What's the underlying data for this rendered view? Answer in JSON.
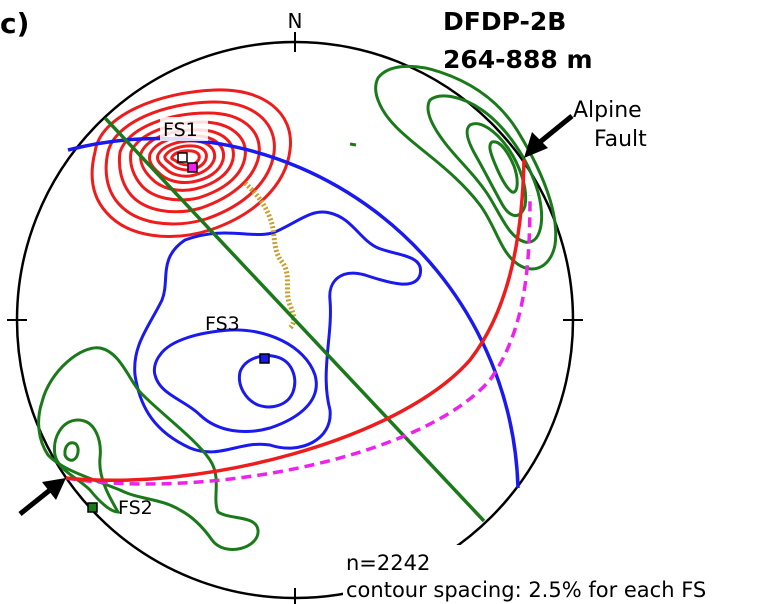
{
  "panel_label": "c)",
  "title": {
    "line1": "DFDP-2B",
    "line2": "264-888 m"
  },
  "north_label": "N",
  "fracture_sets": [
    {
      "label": "FS1",
      "color": "#ee1c1c"
    },
    {
      "label": "FS2",
      "color": "#1a7a1a"
    },
    {
      "label": "FS3",
      "color": "#1a1aee"
    }
  ],
  "alpine_fault": {
    "label_line1": "Alpine",
    "label_line2": "Fault"
  },
  "notes": {
    "n": "n=2242",
    "spacing": "contour spacing: 2.5% for each FS"
  },
  "colors": {
    "red": "#ee1c1c",
    "green": "#1a7a1a",
    "blue": "#1a1aee",
    "magenta": "#ee22ee",
    "gold": "#c8a030"
  }
}
